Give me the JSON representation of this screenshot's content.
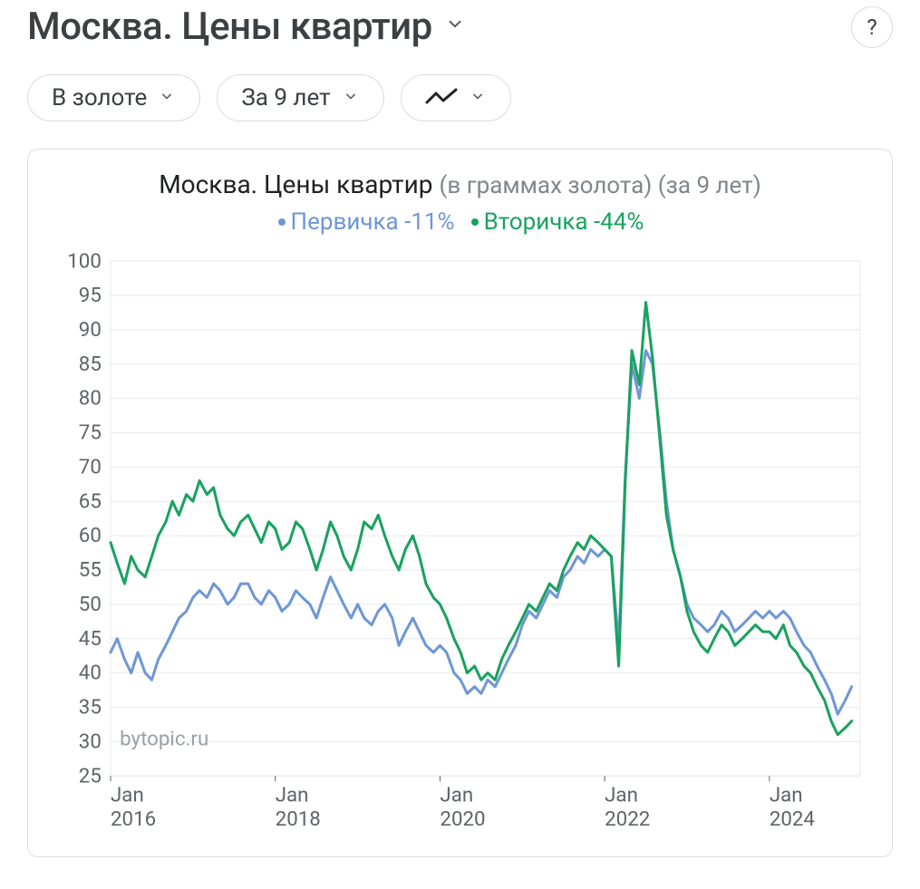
{
  "header": {
    "title": "Москва. Цены квартир",
    "help_label": "?"
  },
  "filters": {
    "currency_label": "В золоте",
    "period_label": "За 9 лет"
  },
  "chart": {
    "type": "line",
    "title_main": "Москва. Цены квартир",
    "title_sub": "(в граммах золота) (за 9 лет)",
    "watermark": "bytopic.ru",
    "background_color": "#ffffff",
    "grid_color": "#e8eaed",
    "axis_text_color": "#5f6368",
    "line_width": 3,
    "ylim": [
      25,
      100
    ],
    "ytick_step": 5,
    "yticks": [
      25,
      30,
      35,
      40,
      45,
      50,
      55,
      60,
      65,
      70,
      75,
      80,
      85,
      90,
      95,
      100
    ],
    "x_start": 2016.0,
    "x_end": 2025.1,
    "xticks": [
      {
        "x": 2016.0,
        "top": "Jan",
        "bottom": "2016"
      },
      {
        "x": 2018.0,
        "top": "Jan",
        "bottom": "2018"
      },
      {
        "x": 2020.0,
        "top": "Jan",
        "bottom": "2020"
      },
      {
        "x": 2022.0,
        "top": "Jan",
        "bottom": "2022"
      },
      {
        "x": 2024.0,
        "top": "Jan",
        "bottom": "2024"
      }
    ],
    "legend": [
      {
        "label": "Первичка -11%",
        "color": "#6f97d6"
      },
      {
        "label": "Вторичка -44%",
        "color": "#1aa260"
      }
    ],
    "series": [
      {
        "name": "Первичка",
        "color": "#6f97d6",
        "points": [
          [
            2016.0,
            43
          ],
          [
            2016.08,
            45
          ],
          [
            2016.17,
            42
          ],
          [
            2016.25,
            40
          ],
          [
            2016.33,
            43
          ],
          [
            2016.42,
            40
          ],
          [
            2016.5,
            39
          ],
          [
            2016.58,
            42
          ],
          [
            2016.67,
            44
          ],
          [
            2016.75,
            46
          ],
          [
            2016.83,
            48
          ],
          [
            2016.92,
            49
          ],
          [
            2017.0,
            51
          ],
          [
            2017.08,
            52
          ],
          [
            2017.17,
            51
          ],
          [
            2017.25,
            53
          ],
          [
            2017.33,
            52
          ],
          [
            2017.42,
            50
          ],
          [
            2017.5,
            51
          ],
          [
            2017.58,
            53
          ],
          [
            2017.67,
            53
          ],
          [
            2017.75,
            51
          ],
          [
            2017.83,
            50
          ],
          [
            2017.92,
            52
          ],
          [
            2018.0,
            51
          ],
          [
            2018.08,
            49
          ],
          [
            2018.17,
            50
          ],
          [
            2018.25,
            52
          ],
          [
            2018.33,
            51
          ],
          [
            2018.42,
            50
          ],
          [
            2018.5,
            48
          ],
          [
            2018.58,
            51
          ],
          [
            2018.67,
            54
          ],
          [
            2018.75,
            52
          ],
          [
            2018.83,
            50
          ],
          [
            2018.92,
            48
          ],
          [
            2019.0,
            50
          ],
          [
            2019.08,
            48
          ],
          [
            2019.17,
            47
          ],
          [
            2019.25,
            49
          ],
          [
            2019.33,
            50
          ],
          [
            2019.42,
            48
          ],
          [
            2019.5,
            44
          ],
          [
            2019.58,
            46
          ],
          [
            2019.67,
            48
          ],
          [
            2019.75,
            46
          ],
          [
            2019.83,
            44
          ],
          [
            2019.92,
            43
          ],
          [
            2020.0,
            44
          ],
          [
            2020.08,
            43
          ],
          [
            2020.17,
            40
          ],
          [
            2020.25,
            39
          ],
          [
            2020.33,
            37
          ],
          [
            2020.42,
            38
          ],
          [
            2020.5,
            37
          ],
          [
            2020.58,
            39
          ],
          [
            2020.67,
            38
          ],
          [
            2020.75,
            40
          ],
          [
            2020.83,
            42
          ],
          [
            2020.92,
            44
          ],
          [
            2021.0,
            47
          ],
          [
            2021.08,
            49
          ],
          [
            2021.17,
            48
          ],
          [
            2021.25,
            50
          ],
          [
            2021.33,
            52
          ],
          [
            2021.42,
            51
          ],
          [
            2021.5,
            54
          ],
          [
            2021.58,
            55
          ],
          [
            2021.67,
            57
          ],
          [
            2021.75,
            56
          ],
          [
            2021.83,
            58
          ],
          [
            2021.92,
            57
          ],
          [
            2022.0,
            58
          ],
          [
            2022.08,
            57
          ],
          [
            2022.17,
            44
          ],
          [
            2022.25,
            69
          ],
          [
            2022.33,
            85
          ],
          [
            2022.42,
            80
          ],
          [
            2022.5,
            87
          ],
          [
            2022.58,
            85
          ],
          [
            2022.67,
            75
          ],
          [
            2022.75,
            65
          ],
          [
            2022.83,
            58
          ],
          [
            2022.92,
            54
          ],
          [
            2023.0,
            50
          ],
          [
            2023.08,
            48
          ],
          [
            2023.17,
            47
          ],
          [
            2023.25,
            46
          ],
          [
            2023.33,
            47
          ],
          [
            2023.42,
            49
          ],
          [
            2023.5,
            48
          ],
          [
            2023.58,
            46
          ],
          [
            2023.67,
            47
          ],
          [
            2023.75,
            48
          ],
          [
            2023.83,
            49
          ],
          [
            2023.92,
            48
          ],
          [
            2024.0,
            49
          ],
          [
            2024.08,
            48
          ],
          [
            2024.17,
            49
          ],
          [
            2024.25,
            48
          ],
          [
            2024.33,
            46
          ],
          [
            2024.42,
            44
          ],
          [
            2024.5,
            43
          ],
          [
            2024.58,
            41
          ],
          [
            2024.67,
            39
          ],
          [
            2024.75,
            37
          ],
          [
            2024.83,
            34
          ],
          [
            2024.92,
            36
          ],
          [
            2025.0,
            38
          ]
        ]
      },
      {
        "name": "Вторичка",
        "color": "#1aa260",
        "points": [
          [
            2016.0,
            59
          ],
          [
            2016.08,
            56
          ],
          [
            2016.17,
            53
          ],
          [
            2016.25,
            57
          ],
          [
            2016.33,
            55
          ],
          [
            2016.42,
            54
          ],
          [
            2016.5,
            57
          ],
          [
            2016.58,
            60
          ],
          [
            2016.67,
            62
          ],
          [
            2016.75,
            65
          ],
          [
            2016.83,
            63
          ],
          [
            2016.92,
            66
          ],
          [
            2017.0,
            65
          ],
          [
            2017.08,
            68
          ],
          [
            2017.17,
            66
          ],
          [
            2017.25,
            67
          ],
          [
            2017.33,
            63
          ],
          [
            2017.42,
            61
          ],
          [
            2017.5,
            60
          ],
          [
            2017.58,
            62
          ],
          [
            2017.67,
            63
          ],
          [
            2017.75,
            61
          ],
          [
            2017.83,
            59
          ],
          [
            2017.92,
            62
          ],
          [
            2018.0,
            61
          ],
          [
            2018.08,
            58
          ],
          [
            2018.17,
            59
          ],
          [
            2018.25,
            62
          ],
          [
            2018.33,
            61
          ],
          [
            2018.42,
            58
          ],
          [
            2018.5,
            55
          ],
          [
            2018.58,
            58
          ],
          [
            2018.67,
            62
          ],
          [
            2018.75,
            60
          ],
          [
            2018.83,
            57
          ],
          [
            2018.92,
            55
          ],
          [
            2019.0,
            58
          ],
          [
            2019.08,
            62
          ],
          [
            2019.17,
            61
          ],
          [
            2019.25,
            63
          ],
          [
            2019.33,
            60
          ],
          [
            2019.42,
            57
          ],
          [
            2019.5,
            55
          ],
          [
            2019.58,
            58
          ],
          [
            2019.67,
            60
          ],
          [
            2019.75,
            57
          ],
          [
            2019.83,
            53
          ],
          [
            2019.92,
            51
          ],
          [
            2020.0,
            50
          ],
          [
            2020.08,
            48
          ],
          [
            2020.17,
            45
          ],
          [
            2020.25,
            43
          ],
          [
            2020.33,
            40
          ],
          [
            2020.42,
            41
          ],
          [
            2020.5,
            39
          ],
          [
            2020.58,
            40
          ],
          [
            2020.67,
            39
          ],
          [
            2020.75,
            42
          ],
          [
            2020.83,
            44
          ],
          [
            2020.92,
            46
          ],
          [
            2021.0,
            48
          ],
          [
            2021.08,
            50
          ],
          [
            2021.17,
            49
          ],
          [
            2021.25,
            51
          ],
          [
            2021.33,
            53
          ],
          [
            2021.42,
            52
          ],
          [
            2021.5,
            55
          ],
          [
            2021.58,
            57
          ],
          [
            2021.67,
            59
          ],
          [
            2021.75,
            58
          ],
          [
            2021.83,
            60
          ],
          [
            2021.92,
            59
          ],
          [
            2022.0,
            58
          ],
          [
            2022.08,
            57
          ],
          [
            2022.17,
            41
          ],
          [
            2022.25,
            68
          ],
          [
            2022.33,
            87
          ],
          [
            2022.42,
            82
          ],
          [
            2022.5,
            94
          ],
          [
            2022.58,
            86
          ],
          [
            2022.67,
            74
          ],
          [
            2022.75,
            63
          ],
          [
            2022.83,
            58
          ],
          [
            2022.92,
            54
          ],
          [
            2023.0,
            49
          ],
          [
            2023.08,
            46
          ],
          [
            2023.17,
            44
          ],
          [
            2023.25,
            43
          ],
          [
            2023.33,
            45
          ],
          [
            2023.42,
            47
          ],
          [
            2023.5,
            46
          ],
          [
            2023.58,
            44
          ],
          [
            2023.67,
            45
          ],
          [
            2023.75,
            46
          ],
          [
            2023.83,
            47
          ],
          [
            2023.92,
            46
          ],
          [
            2024.0,
            46
          ],
          [
            2024.08,
            45
          ],
          [
            2024.17,
            47
          ],
          [
            2024.25,
            44
          ],
          [
            2024.33,
            43
          ],
          [
            2024.42,
            41
          ],
          [
            2024.5,
            40
          ],
          [
            2024.58,
            38
          ],
          [
            2024.67,
            36
          ],
          [
            2024.75,
            33
          ],
          [
            2024.83,
            31
          ],
          [
            2024.92,
            32
          ],
          [
            2025.0,
            33
          ]
        ]
      }
    ]
  }
}
